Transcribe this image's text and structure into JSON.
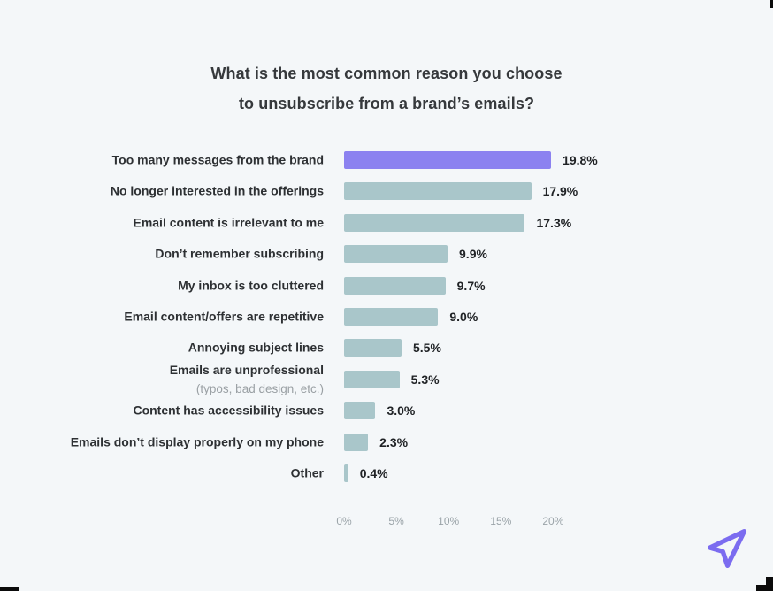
{
  "chart_data": {
    "type": "bar",
    "orientation": "horizontal",
    "title_line1": "What is the most common reason you choose",
    "title_line2": "to unsubscribe from a brand’s emails?",
    "categories": [
      "Too many messages from the brand",
      "No longer interested in the offerings",
      "Email content is irrelevant to me",
      "Don’t remember subscribing",
      "My inbox is too cluttered",
      "Email content/offers are repetitive",
      "Annoying subject lines",
      "Emails are unprofessional",
      "Content has accessibility issues",
      "Emails don’t display properly on my phone",
      "Other"
    ],
    "sublabels": {
      "7": "(typos, bad design, etc.)"
    },
    "values": [
      19.8,
      17.9,
      17.3,
      9.9,
      9.7,
      9.0,
      5.5,
      5.3,
      3.0,
      2.3,
      0.4
    ],
    "value_labels": [
      "19.8%",
      "17.9%",
      "17.3%",
      "9.9%",
      "9.7%",
      "9.0%",
      "5.5%",
      "5.3%",
      "3.0%",
      "2.3%",
      "0.4%"
    ],
    "highlight_index": 0,
    "bar_color": "#a9c6ca",
    "highlight_color": "#8c82f0",
    "xticks": [
      "0%",
      "5%",
      "10%",
      "15%",
      "20%"
    ],
    "xtick_values": [
      0,
      5,
      10,
      15,
      20
    ],
    "xlim": [
      0,
      20
    ],
    "grid": false,
    "legend": false
  },
  "logo": {
    "icon": "paper-plane-icon",
    "color": "#7b6cf0"
  },
  "colors": {
    "background": "#f4f7f9",
    "title": "#36393c",
    "label": "#2d3033",
    "sublabel": "#9aa0a4",
    "value": "#202326",
    "axis": "#9aa3a8"
  }
}
